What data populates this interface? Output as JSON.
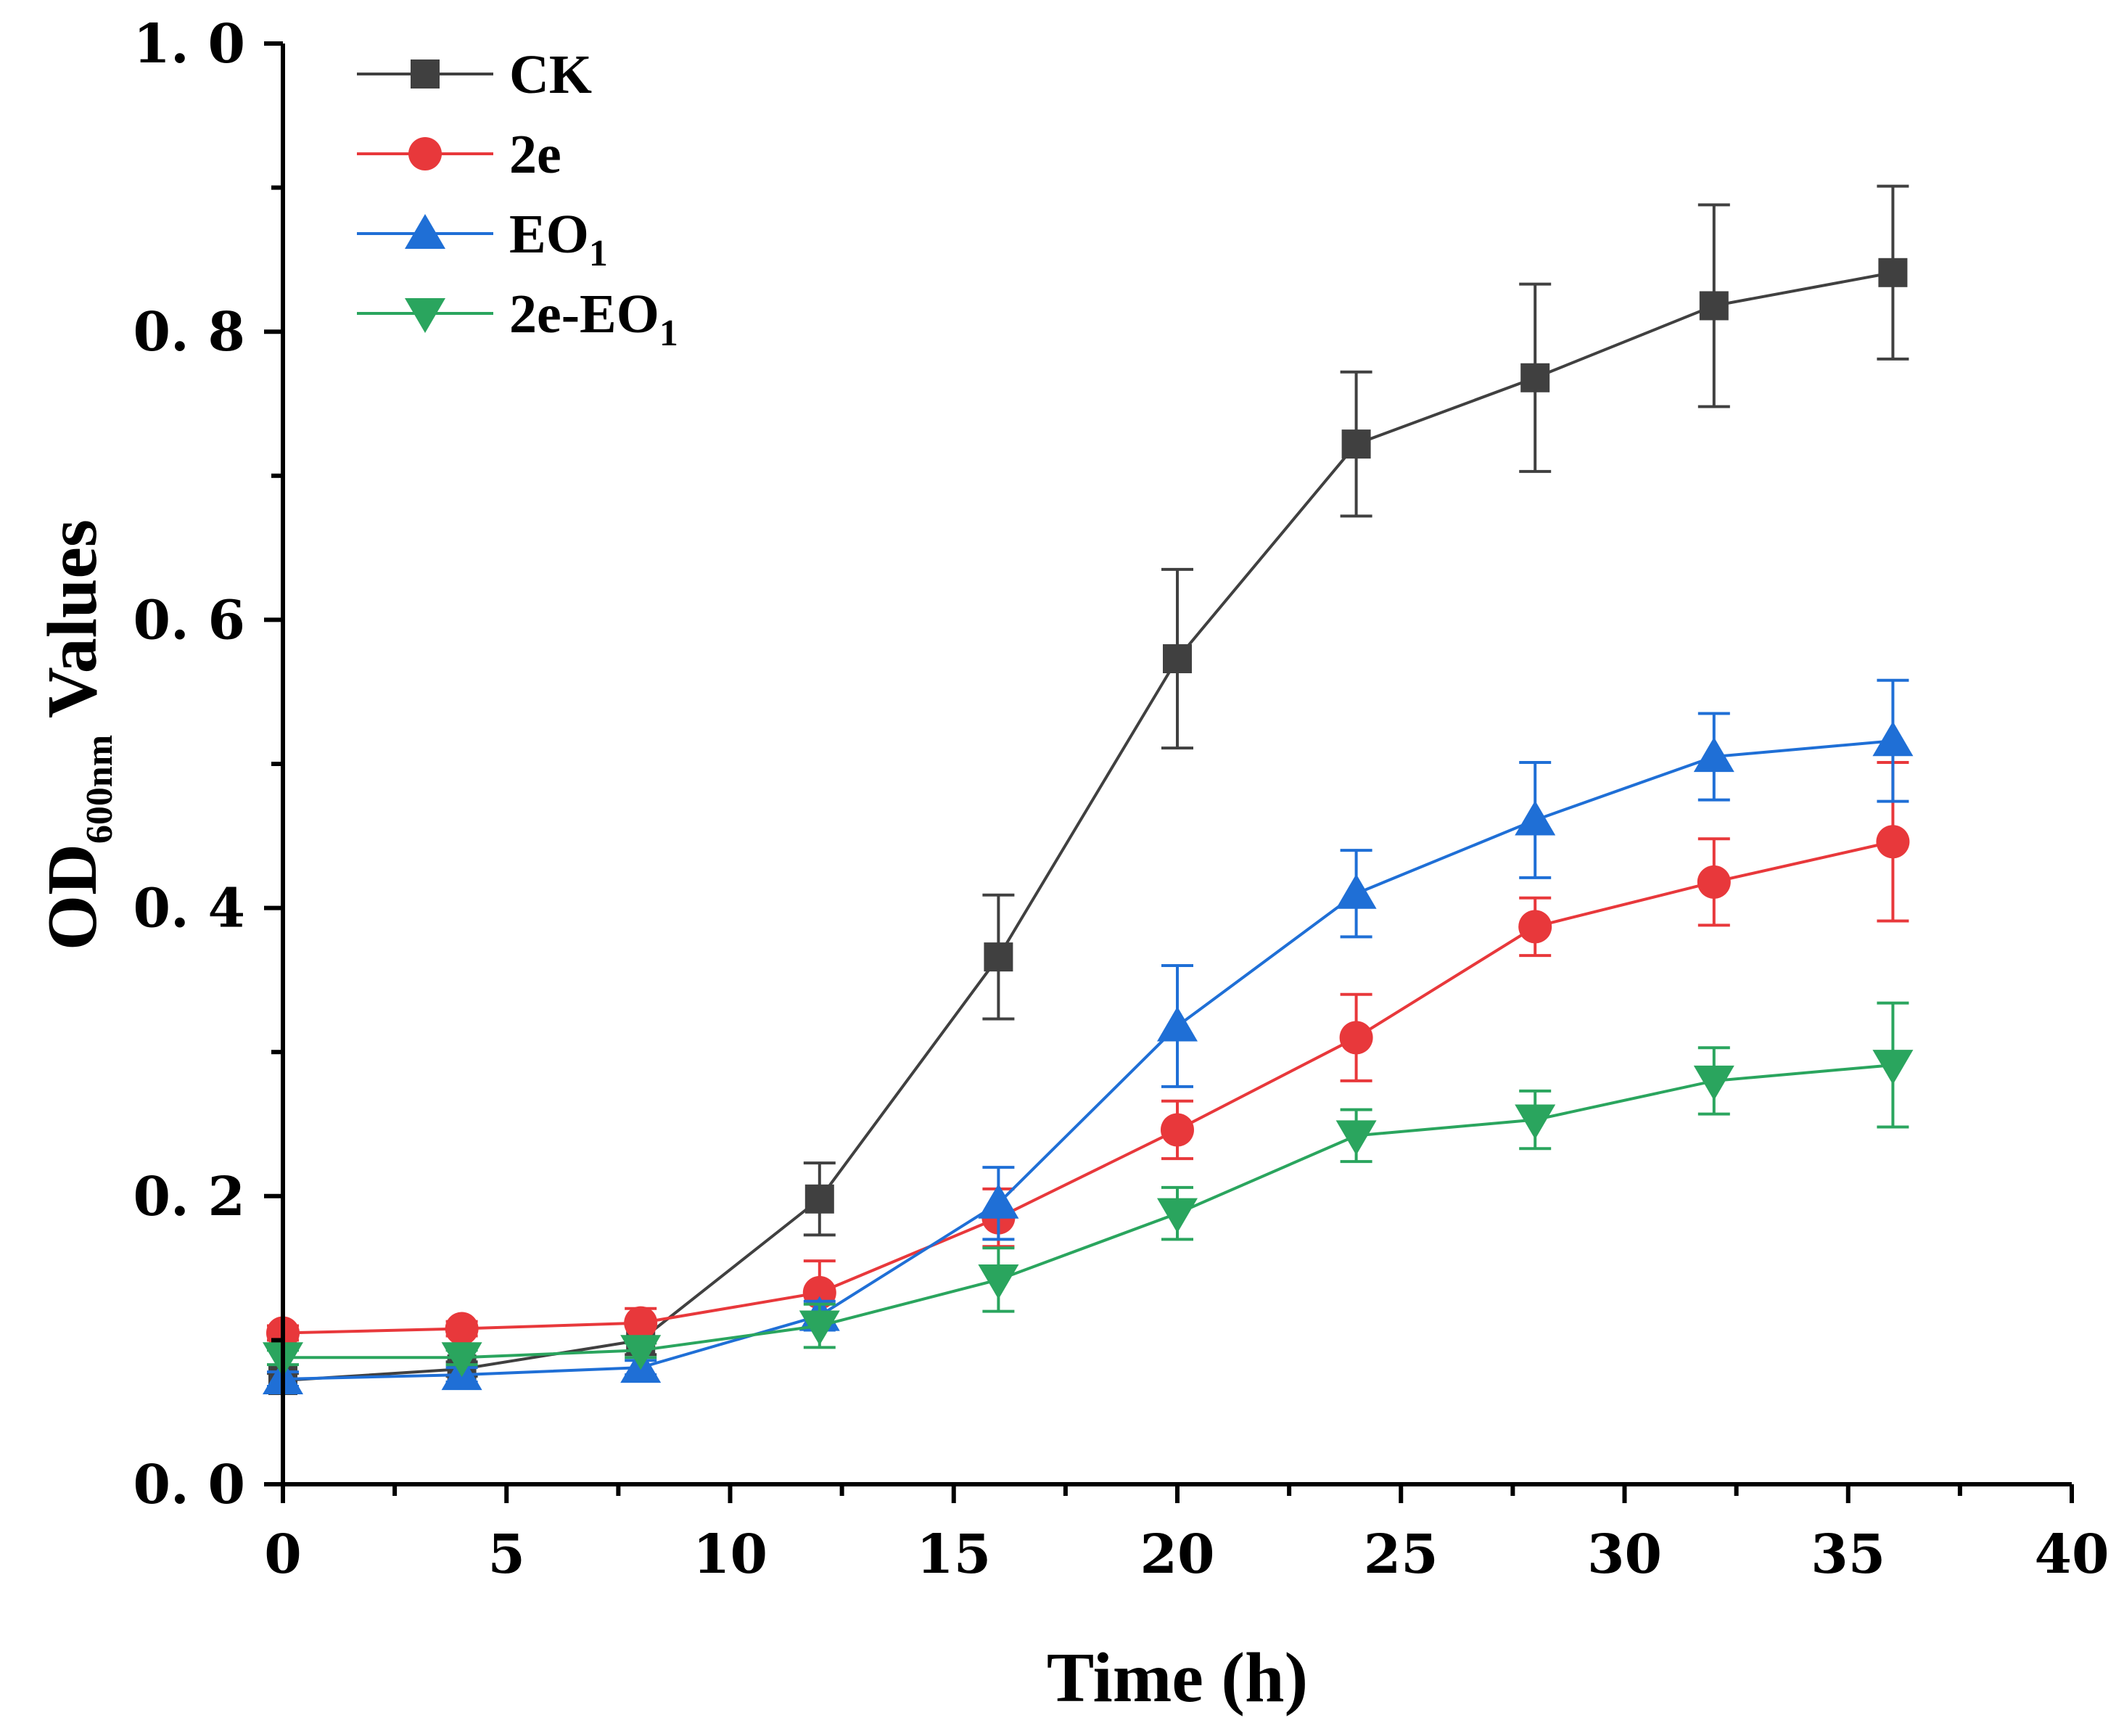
{
  "chart_data": {
    "type": "line",
    "title": "",
    "xlabel": "Time (h)",
    "ylabel": {
      "main": "OD",
      "subscript": "600nm",
      "suffix": " Values"
    },
    "xlim": [
      0,
      40
    ],
    "ylim": [
      0,
      1.0
    ],
    "x_ticks": [
      "0",
      "5",
      "10",
      "15",
      "20",
      "25",
      "30",
      "35",
      "40"
    ],
    "x_tick_values": [
      0,
      5,
      10,
      15,
      20,
      25,
      30,
      35,
      40
    ],
    "y_ticks": [
      "0. 0",
      "0. 2",
      "0. 4",
      "0. 6",
      "0. 8",
      "1. 0"
    ],
    "y_tick_values": [
      0,
      0.2,
      0.4,
      0.6,
      0.8,
      1.0
    ],
    "grid": false,
    "legend_position": "top-left",
    "x": [
      0,
      4,
      8,
      12,
      16,
      20,
      24,
      28,
      32,
      36
    ],
    "series": [
      {
        "name": "CK",
        "name_main": "CK",
        "name_sub": "",
        "color": "#404040",
        "marker": "square",
        "values": [
          0.072,
          0.08,
          0.1,
          0.198,
          0.366,
          0.573,
          0.722,
          0.768,
          0.818,
          0.841
        ],
        "errors": [
          0.005,
          0.005,
          0.01,
          0.025,
          0.043,
          0.062,
          0.05,
          0.065,
          0.07,
          0.06
        ]
      },
      {
        "name": "2e",
        "name_main": "2e",
        "name_sub": "",
        "color": "#e8383b",
        "marker": "circle",
        "values": [
          0.105,
          0.108,
          0.112,
          0.133,
          0.185,
          0.246,
          0.31,
          0.387,
          0.418,
          0.446
        ],
        "errors": [
          0.005,
          0.005,
          0.01,
          0.022,
          0.02,
          0.02,
          0.03,
          0.02,
          0.03,
          0.055
        ]
      },
      {
        "name": "EO1",
        "name_main": "EO",
        "name_sub": "1",
        "color": "#1f6fd6",
        "marker": "triangle-up",
        "values": [
          0.073,
          0.076,
          0.081,
          0.117,
          0.195,
          0.318,
          0.41,
          0.461,
          0.505,
          0.516
        ],
        "errors": [
          0.005,
          0.005,
          0.005,
          0.01,
          0.025,
          0.042,
          0.03,
          0.04,
          0.03,
          0.042
        ]
      },
      {
        "name": "2e-EO1",
        "name_main": "2e-EO",
        "name_sub": "1",
        "color": "#2aa55e",
        "marker": "triangle-down",
        "values": [
          0.088,
          0.088,
          0.093,
          0.11,
          0.142,
          0.188,
          0.242,
          0.253,
          0.28,
          0.291
        ],
        "errors": [
          0.005,
          0.005,
          0.005,
          0.015,
          0.022,
          0.018,
          0.018,
          0.02,
          0.023,
          0.043
        ]
      }
    ]
  }
}
